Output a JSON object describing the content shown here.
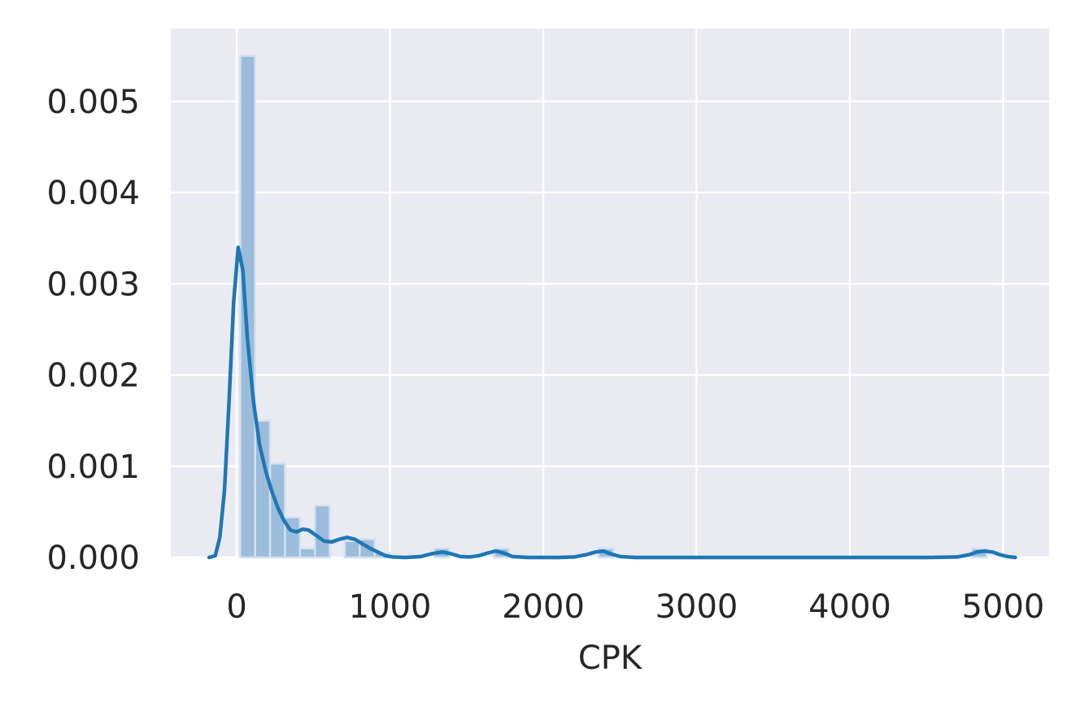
{
  "chart_data": {
    "type": "bar",
    "xlabel": "CPK",
    "ylabel": "",
    "title": "",
    "xlim": [
      -430,
      5300
    ],
    "ylim": [
      0,
      0.0058
    ],
    "xticks": [
      0,
      1000,
      2000,
      3000,
      4000,
      5000
    ],
    "xtick_labels": [
      "0",
      "1000",
      "2000",
      "3000",
      "4000",
      "5000"
    ],
    "yticks": [
      0,
      0.001,
      0.002,
      0.003,
      0.004,
      0.005
    ],
    "ytick_labels": [
      "0.000",
      "0.001",
      "0.002",
      "0.003",
      "0.004",
      "0.005"
    ],
    "grid": true,
    "legend": "none",
    "colors": {
      "plot_background": "#eaeaf2",
      "grid": "#ffffff",
      "bar_fill": "#9bbcdb",
      "bar_edge": "#d3e1ef",
      "kde_line": "#1f77b4"
    },
    "histogram": {
      "bin_width": 97.4,
      "bins": [
        {
          "x0": 23,
          "density": 0.0055
        },
        {
          "x0": 120.4,
          "density": 0.0015
        },
        {
          "x0": 217.8,
          "density": 0.00103
        },
        {
          "x0": 315.2,
          "density": 0.00044
        },
        {
          "x0": 412.6,
          "density": 0.0001
        },
        {
          "x0": 510,
          "density": 0.00057
        },
        {
          "x0": 704.8,
          "density": 0.00018
        },
        {
          "x0": 802.2,
          "density": 0.0002
        },
        {
          "x0": 899.6,
          "density": 5e-05
        },
        {
          "x0": 1289.2,
          "density": 0.0001
        },
        {
          "x0": 1678.8,
          "density": 0.0001
        },
        {
          "x0": 2360.6,
          "density": 0.0001
        },
        {
          "x0": 4795.6,
          "density": 0.0001
        }
      ]
    },
    "kde": {
      "x": [
        -180,
        -140,
        -110,
        -80,
        -50,
        -20,
        10,
        40,
        70,
        110,
        150,
        190,
        230,
        270,
        310,
        350,
        390,
        430,
        470,
        520,
        570,
        620,
        670,
        720,
        770,
        820,
        870,
        920,
        970,
        1020,
        1100,
        1200,
        1270,
        1340,
        1400,
        1460,
        1520,
        1580,
        1640,
        1690,
        1740,
        1800,
        1900,
        2000,
        2100,
        2200,
        2280,
        2340,
        2390,
        2440,
        2500,
        2600,
        3000,
        3500,
        4000,
        4500,
        4700,
        4780,
        4830,
        4880,
        4930,
        4980,
        5030,
        5080
      ],
      "y": [
        0,
        2e-05,
        0.00022,
        0.00073,
        0.0017,
        0.0028,
        0.0034,
        0.00315,
        0.0024,
        0.0017,
        0.00123,
        0.00094,
        0.00072,
        0.00054,
        0.0004,
        0.0003,
        0.00028,
        0.00031,
        0.0003,
        0.00024,
        0.00018,
        0.00017,
        0.0002,
        0.00022,
        0.0002,
        0.00015,
        0.0001,
        6e-05,
        2e-05,
        5e-06,
        0,
        1e-05,
        4e-05,
        6e-05,
        4e-05,
        1e-05,
        5e-06,
        2e-05,
        5e-05,
        7e-05,
        5e-05,
        1e-05,
        0,
        0,
        0,
        5e-06,
        3e-05,
        6e-05,
        7e-05,
        4e-05,
        1e-05,
        0,
        0,
        0,
        0,
        0,
        5e-06,
        3e-05,
        6e-05,
        7e-05,
        6e-05,
        3e-05,
        1e-05,
        0
      ]
    }
  }
}
